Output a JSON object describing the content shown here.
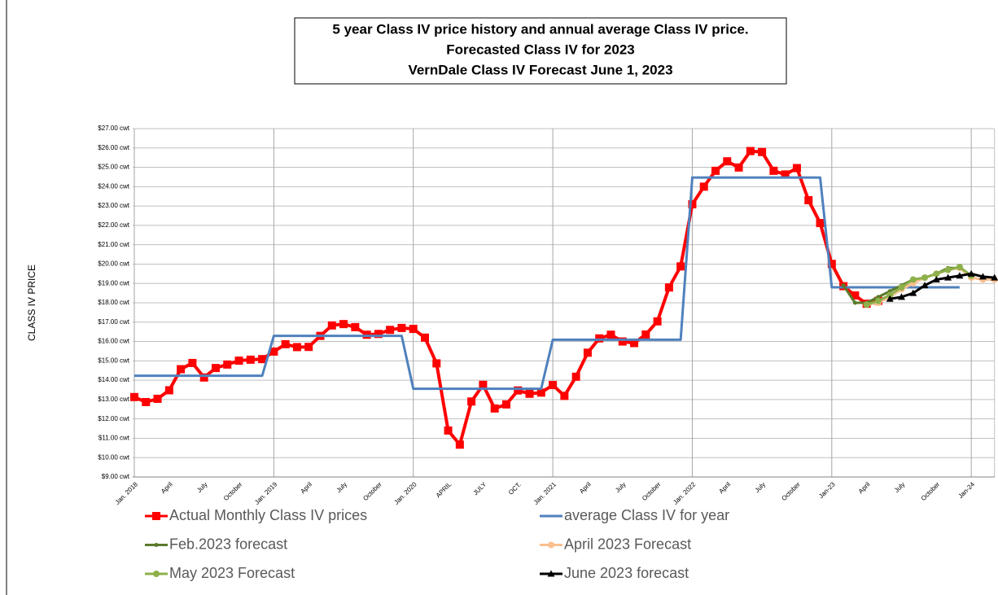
{
  "chart_data": {
    "type": "line",
    "title": [
      "5 year Class IV price history and annual average Class IV price.",
      "Forecasted Class IV for 2023",
      "VernDale Class IV Forecast June 1, 2023"
    ],
    "y_label": "CLASS  IV PRICE",
    "categories": [
      "Jan. 2018",
      null,
      null,
      "April",
      null,
      null,
      "July",
      null,
      null,
      "October",
      null,
      null,
      "Jan. 2019",
      null,
      null,
      "April",
      null,
      null,
      "July",
      null,
      null,
      "October",
      null,
      null,
      "Jan. 2020",
      null,
      null,
      "APRIL",
      null,
      null,
      "JULY",
      null,
      null,
      "OCT.",
      null,
      null,
      "Jan. 2021",
      null,
      null,
      "April",
      null,
      null,
      "July",
      null,
      null,
      "October",
      null,
      null,
      "Jan. 2022",
      null,
      null,
      "April",
      null,
      null,
      "July",
      null,
      null,
      "October",
      null,
      null,
      "Jan-23",
      null,
      null,
      "April",
      null,
      null,
      "July",
      null,
      null,
      "October",
      null,
      null,
      "Jan-24",
      null,
      null
    ],
    "ylim": [
      9,
      27
    ],
    "yticks": [
      {
        "value": 9,
        "label": "$9.00 cwt"
      },
      {
        "value": 10,
        "label": "$10.00 cwt"
      },
      {
        "value": 11,
        "label": "$11.00 cwt"
      },
      {
        "value": 12,
        "label": "$12.00 cwt"
      },
      {
        "value": 13,
        "label": "$13.00 cwt"
      },
      {
        "value": 14,
        "label": "$14.00 cwt"
      },
      {
        "value": 15,
        "label": "$15.00 cwt"
      },
      {
        "value": 16,
        "label": "$16.00 cwt"
      },
      {
        "value": 17,
        "label": "$17.00 cwt"
      },
      {
        "value": 18,
        "label": "$18.00 cwt"
      },
      {
        "value": 19,
        "label": "$19.00 cwt"
      },
      {
        "value": 20,
        "label": "$20.00 cwt"
      },
      {
        "value": 21,
        "label": "$21.00 cwt"
      },
      {
        "value": 22,
        "label": "$22.00 cwt"
      },
      {
        "value": 23,
        "label": "$23.00 cwt"
      },
      {
        "value": 24,
        "label": "$24.00 cwt"
      },
      {
        "value": 25,
        "label": "$25.00 cwt"
      },
      {
        "value": 26,
        "label": "$26.00 cwt"
      },
      {
        "value": 27,
        "label": "$27.00 cwt"
      }
    ],
    "grid": true,
    "series": [
      {
        "name": "Actual Monthly Class IV prices",
        "color": "#ff0000",
        "marker": "square",
        "values": [
          13.13,
          12.87,
          13.04,
          13.48,
          14.57,
          14.89,
          14.14,
          14.63,
          14.81,
          15.01,
          15.06,
          15.09,
          15.48,
          15.86,
          15.71,
          15.72,
          16.29,
          16.83,
          16.9,
          16.74,
          16.35,
          16.39,
          16.6,
          16.7,
          16.65,
          16.2,
          14.87,
          11.4,
          10.67,
          12.9,
          13.76,
          12.54,
          12.75,
          13.47,
          13.3,
          13.36,
          13.75,
          13.19,
          14.18,
          15.42,
          16.16,
          16.35,
          16.0,
          15.92,
          16.36,
          17.04,
          18.79,
          19.88,
          23.09,
          24.0,
          24.82,
          25.31,
          24.99,
          25.84,
          25.79,
          24.82,
          24.63,
          24.96,
          23.3,
          22.12,
          20.01,
          18.86,
          18.38,
          17.95,
          18.1,
          null,
          null,
          null,
          null,
          null,
          null,
          null,
          null,
          null,
          null
        ]
      },
      {
        "name": "average Class IV for  year",
        "color": "#4f81bd",
        "marker": "none",
        "values": [
          14.23,
          14.23,
          14.23,
          14.23,
          14.23,
          14.23,
          14.23,
          14.23,
          14.23,
          14.23,
          14.23,
          14.23,
          16.29,
          16.29,
          16.29,
          16.29,
          16.29,
          16.29,
          16.29,
          16.29,
          16.29,
          16.29,
          16.29,
          16.29,
          13.56,
          13.56,
          13.56,
          13.56,
          13.56,
          13.56,
          13.56,
          13.56,
          13.56,
          13.56,
          13.56,
          13.56,
          16.09,
          16.09,
          16.09,
          16.09,
          16.09,
          16.09,
          16.09,
          16.09,
          16.09,
          16.09,
          16.09,
          16.09,
          24.47,
          24.47,
          24.47,
          24.47,
          24.47,
          24.47,
          24.47,
          24.47,
          24.47,
          24.47,
          24.47,
          24.47,
          18.8,
          18.8,
          18.8,
          18.8,
          18.8,
          18.8,
          18.8,
          18.8,
          18.8,
          18.8,
          18.8,
          18.8,
          null,
          null,
          null
        ]
      },
      {
        "name": "Feb.2023  forecast",
        "color": "#5a7a2a",
        "marker": "dot",
        "values": [
          null,
          null,
          null,
          null,
          null,
          null,
          null,
          null,
          null,
          null,
          null,
          null,
          null,
          null,
          null,
          null,
          null,
          null,
          null,
          null,
          null,
          null,
          null,
          null,
          null,
          null,
          null,
          null,
          null,
          null,
          null,
          null,
          null,
          null,
          null,
          null,
          null,
          null,
          null,
          null,
          null,
          null,
          null,
          null,
          null,
          null,
          null,
          null,
          null,
          null,
          null,
          null,
          null,
          null,
          null,
          null,
          null,
          null,
          null,
          null,
          null,
          18.9,
          18.0,
          18.0,
          18.3,
          18.6,
          18.9,
          19.2,
          19.3,
          19.5,
          19.8,
          19.8,
          null,
          null,
          null
        ]
      },
      {
        "name": "April 2023 Forecast",
        "color": "#fac090",
        "marker": "circle",
        "values": [
          null,
          null,
          null,
          null,
          null,
          null,
          null,
          null,
          null,
          null,
          null,
          null,
          null,
          null,
          null,
          null,
          null,
          null,
          null,
          null,
          null,
          null,
          null,
          null,
          null,
          null,
          null,
          null,
          null,
          null,
          null,
          null,
          null,
          null,
          null,
          null,
          null,
          null,
          null,
          null,
          null,
          null,
          null,
          null,
          null,
          null,
          null,
          null,
          null,
          null,
          null,
          null,
          null,
          null,
          null,
          null,
          null,
          null,
          null,
          null,
          null,
          null,
          null,
          17.9,
          18.0,
          18.3,
          18.7,
          19.0,
          19.3,
          19.5,
          19.7,
          19.8,
          19.3,
          19.2,
          19.2
        ]
      },
      {
        "name": "May 2023 Forecast",
        "color": "#8db04a",
        "marker": "circle",
        "values": [
          null,
          null,
          null,
          null,
          null,
          null,
          null,
          null,
          null,
          null,
          null,
          null,
          null,
          null,
          null,
          null,
          null,
          null,
          null,
          null,
          null,
          null,
          null,
          null,
          null,
          null,
          null,
          null,
          null,
          null,
          null,
          null,
          null,
          null,
          null,
          null,
          null,
          null,
          null,
          null,
          null,
          null,
          null,
          null,
          null,
          null,
          null,
          null,
          null,
          null,
          null,
          null,
          null,
          null,
          null,
          null,
          null,
          null,
          null,
          null,
          null,
          null,
          null,
          17.9,
          18.1,
          18.4,
          18.8,
          19.2,
          19.3,
          19.5,
          19.7,
          19.85,
          19.4,
          null,
          null
        ]
      },
      {
        "name": "June 2023 forecast",
        "color": "#000000",
        "marker": "triangle",
        "values": [
          null,
          null,
          null,
          null,
          null,
          null,
          null,
          null,
          null,
          null,
          null,
          null,
          null,
          null,
          null,
          null,
          null,
          null,
          null,
          null,
          null,
          null,
          null,
          null,
          null,
          null,
          null,
          null,
          null,
          null,
          null,
          null,
          null,
          null,
          null,
          null,
          null,
          null,
          null,
          null,
          null,
          null,
          null,
          null,
          null,
          null,
          null,
          null,
          null,
          null,
          null,
          null,
          null,
          null,
          null,
          null,
          null,
          null,
          null,
          null,
          null,
          null,
          null,
          null,
          null,
          18.2,
          18.3,
          18.5,
          18.9,
          19.2,
          19.3,
          19.4,
          19.5,
          19.35,
          19.3
        ]
      }
    ]
  }
}
